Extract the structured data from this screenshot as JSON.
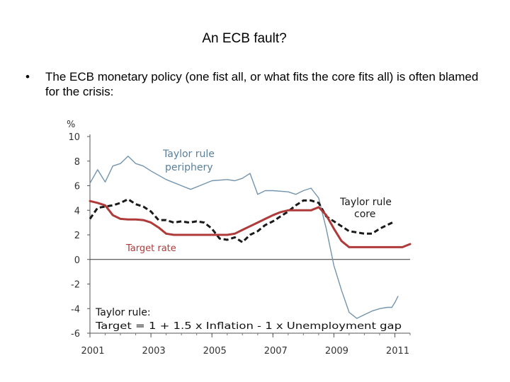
{
  "slide": {
    "title": "An ECB fault?",
    "bullet_marker": "•",
    "bullet_text": "The ECB monetary policy (one fist all, or what fits the core fits all) is often blamed for the crisis:"
  },
  "chart_data": {
    "type": "line",
    "ylabel": "%",
    "xlabel": "",
    "ylim": [
      -6,
      10
    ],
    "xlim": [
      2001,
      2011.5
    ],
    "yticks": [
      10,
      8,
      6,
      4,
      2,
      0,
      -2,
      -4,
      -6
    ],
    "xticks": [
      2001,
      2003,
      2005,
      2007,
      2009,
      2011
    ],
    "grid": false,
    "annotations": {
      "periphery_line1": "Taylor rule",
      "periphery_line2": "periphery",
      "core_line1": "Taylor rule",
      "core_line2": "core",
      "target": "Target rate",
      "formula_line1": "Taylor rule:",
      "formula_line2": "Target = 1 + 1.5 x Inflation - 1 x Unemployment gap"
    },
    "series": [
      {
        "key": "periphery",
        "color": "#7394ad",
        "style": "solid",
        "points": [
          [
            2001.0,
            6.2
          ],
          [
            2001.25,
            7.3
          ],
          [
            2001.5,
            6.3
          ],
          [
            2001.75,
            7.6
          ],
          [
            2002.0,
            7.8
          ],
          [
            2002.25,
            8.4
          ],
          [
            2002.5,
            7.8
          ],
          [
            2002.75,
            7.6
          ],
          [
            2003.0,
            7.2
          ],
          [
            2003.5,
            6.5
          ],
          [
            2004.0,
            6.0
          ],
          [
            2004.3,
            5.7
          ],
          [
            2004.6,
            6.0
          ],
          [
            2005.0,
            6.4
          ],
          [
            2005.5,
            6.5
          ],
          [
            2005.75,
            6.4
          ],
          [
            2006.0,
            6.6
          ],
          [
            2006.25,
            7.0
          ],
          [
            2006.5,
            5.3
          ],
          [
            2006.75,
            5.6
          ],
          [
            2007.0,
            5.6
          ],
          [
            2007.5,
            5.5
          ],
          [
            2007.75,
            5.3
          ],
          [
            2008.0,
            5.6
          ],
          [
            2008.25,
            5.8
          ],
          [
            2008.5,
            5.0
          ],
          [
            2008.75,
            2.5
          ],
          [
            2009.0,
            -0.5
          ],
          [
            2009.25,
            -2.5
          ],
          [
            2009.5,
            -4.3
          ],
          [
            2009.75,
            -4.8
          ],
          [
            2010.0,
            -4.5
          ],
          [
            2010.25,
            -4.2
          ],
          [
            2010.5,
            -4.0
          ],
          [
            2010.75,
            -3.9
          ],
          [
            2010.9,
            -3.9
          ],
          [
            2011.0,
            -3.5
          ],
          [
            2011.1,
            -3.0
          ]
        ]
      },
      {
        "key": "core",
        "color": "#1a1a1a",
        "style": "dashed",
        "points": [
          [
            2001.0,
            3.3
          ],
          [
            2001.25,
            4.2
          ],
          [
            2001.5,
            4.3
          ],
          [
            2001.75,
            4.4
          ],
          [
            2002.0,
            4.6
          ],
          [
            2002.25,
            4.9
          ],
          [
            2002.5,
            4.5
          ],
          [
            2002.75,
            4.3
          ],
          [
            2003.0,
            3.9
          ],
          [
            2003.25,
            3.2
          ],
          [
            2003.5,
            3.2
          ],
          [
            2003.75,
            3.0
          ],
          [
            2004.0,
            3.1
          ],
          [
            2004.25,
            3.0
          ],
          [
            2004.5,
            3.1
          ],
          [
            2004.75,
            3.0
          ],
          [
            2005.0,
            2.5
          ],
          [
            2005.25,
            1.7
          ],
          [
            2005.5,
            1.6
          ],
          [
            2005.75,
            1.8
          ],
          [
            2006.0,
            1.4
          ],
          [
            2006.25,
            2.0
          ],
          [
            2006.5,
            2.3
          ],
          [
            2006.75,
            2.8
          ],
          [
            2007.0,
            3.1
          ],
          [
            2007.25,
            3.5
          ],
          [
            2007.5,
            3.9
          ],
          [
            2007.75,
            4.4
          ],
          [
            2008.0,
            4.8
          ],
          [
            2008.25,
            4.8
          ],
          [
            2008.5,
            4.6
          ],
          [
            2008.75,
            3.5
          ],
          [
            2009.0,
            3.1
          ],
          [
            2009.25,
            2.7
          ],
          [
            2009.5,
            2.3
          ],
          [
            2009.75,
            2.2
          ],
          [
            2010.0,
            2.1
          ],
          [
            2010.25,
            2.1
          ],
          [
            2010.5,
            2.5
          ],
          [
            2010.75,
            2.8
          ],
          [
            2011.0,
            3.1
          ]
        ]
      },
      {
        "key": "target",
        "color": "#b03a3a",
        "style": "solid",
        "points": [
          [
            2001.0,
            4.75
          ],
          [
            2001.25,
            4.6
          ],
          [
            2001.5,
            4.4
          ],
          [
            2001.75,
            3.6
          ],
          [
            2002.0,
            3.3
          ],
          [
            2002.25,
            3.25
          ],
          [
            2002.5,
            3.25
          ],
          [
            2002.75,
            3.2
          ],
          [
            2003.0,
            3.0
          ],
          [
            2003.25,
            2.6
          ],
          [
            2003.5,
            2.1
          ],
          [
            2003.75,
            2.0
          ],
          [
            2004.0,
            2.0
          ],
          [
            2004.5,
            2.0
          ],
          [
            2005.0,
            2.0
          ],
          [
            2005.5,
            2.0
          ],
          [
            2005.75,
            2.1
          ],
          [
            2006.0,
            2.4
          ],
          [
            2006.25,
            2.7
          ],
          [
            2006.5,
            3.0
          ],
          [
            2006.75,
            3.3
          ],
          [
            2007.0,
            3.6
          ],
          [
            2007.25,
            3.85
          ],
          [
            2007.5,
            4.0
          ],
          [
            2007.75,
            4.0
          ],
          [
            2008.0,
            4.0
          ],
          [
            2008.25,
            4.0
          ],
          [
            2008.5,
            4.25
          ],
          [
            2008.75,
            3.6
          ],
          [
            2009.0,
            2.5
          ],
          [
            2009.25,
            1.5
          ],
          [
            2009.5,
            1.0
          ],
          [
            2009.75,
            1.0
          ],
          [
            2010.0,
            1.0
          ],
          [
            2010.5,
            1.0
          ],
          [
            2010.75,
            1.0
          ],
          [
            2011.0,
            1.0
          ],
          [
            2011.25,
            1.0
          ],
          [
            2011.5,
            1.25
          ]
        ]
      }
    ]
  }
}
